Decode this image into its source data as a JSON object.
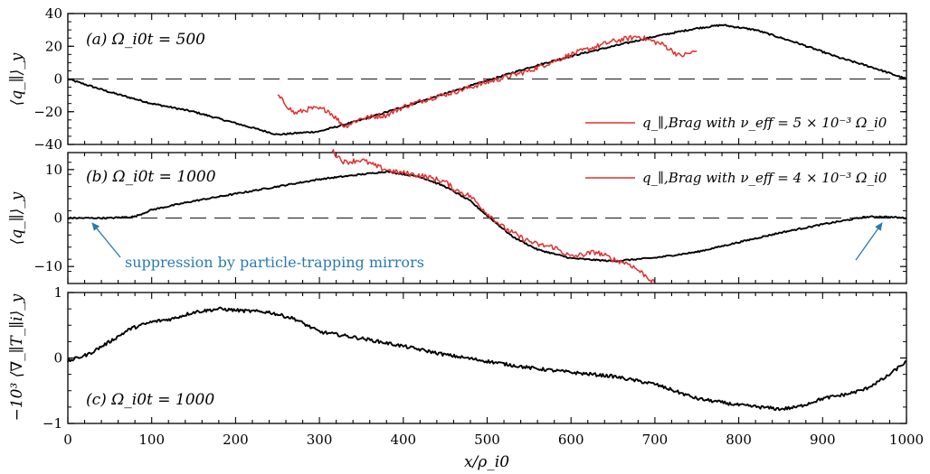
{
  "colors": {
    "black": "#000000",
    "red": "#e03030",
    "annotation": "#2a7ab0"
  },
  "xaxis": {
    "label": "x/ρ_i0",
    "ticks": [
      "0",
      "100",
      "200",
      "300",
      "400",
      "500",
      "600",
      "700",
      "800",
      "900",
      "1000"
    ]
  },
  "chart_data": [
    {
      "type": "line",
      "panel": "a",
      "panel_label": "(a) Ω_i0t = 500",
      "ylabel": "⟨q_∥⟩_y",
      "ylim": [
        -40,
        40
      ],
      "yticks": [
        "40",
        "20",
        "0",
        "−20",
        "−40"
      ],
      "ytick_values": [
        40,
        20,
        0,
        -20,
        -40
      ],
      "reference_line": 0,
      "xlim": [
        0,
        1000
      ],
      "series": [
        {
          "color": "#000000",
          "noise": 0.5,
          "x": [
            0,
            50,
            100,
            150,
            200,
            250,
            300,
            350,
            400,
            450,
            500,
            550,
            600,
            650,
            700,
            750,
            780,
            820,
            870,
            920,
            960,
            1000
          ],
          "y": [
            0,
            -8,
            -15,
            -20,
            -27,
            -34,
            -32,
            -25,
            -17,
            -9,
            -1,
            7,
            14,
            20,
            26,
            31,
            33,
            30,
            22,
            13,
            7,
            0
          ]
        },
        {
          "name": "q_∥,Brag with ν_eff = 5 × 10⁻³ Ω_i0",
          "color": "#e03030",
          "noise": 1.6,
          "x": [
            250,
            270,
            290,
            310,
            330,
            350,
            380,
            400,
            430,
            460,
            500,
            550,
            600,
            650,
            680,
            710,
            730,
            750
          ],
          "y": [
            -10,
            -21,
            -18,
            -19,
            -29,
            -24,
            -22,
            -17,
            -12,
            -8,
            -2,
            5,
            15,
            23,
            26,
            21,
            14,
            17
          ]
        }
      ],
      "legend": {
        "label": "q_∥,Brag with ν_eff = 5 × 10⁻³ Ω_i0",
        "position": "bottom-right"
      }
    },
    {
      "type": "line",
      "panel": "b",
      "panel_label": "(b) Ω_i0t = 1000",
      "ylabel": "⟨q_∥⟩_y",
      "ylim": [
        -13.5,
        13.5
      ],
      "yticks": [
        "10",
        "0",
        "−10"
      ],
      "ytick_values": [
        10,
        0,
        -10
      ],
      "reference_line": 0,
      "xlim": [
        0,
        1000
      ],
      "series": [
        {
          "color": "#000000",
          "noise": 0.15,
          "x": [
            0,
            50,
            80,
            100,
            150,
            200,
            250,
            300,
            350,
            380,
            420,
            450,
            480,
            500,
            530,
            560,
            600,
            650,
            700,
            750,
            800,
            850,
            900,
            950,
            970,
            1000
          ],
          "y": [
            0,
            0,
            0.3,
            1.7,
            3.5,
            5,
            6.5,
            8,
            9,
            9.6,
            8.5,
            6.5,
            3.5,
            0.5,
            -3.8,
            -6.5,
            -8.3,
            -8.9,
            -8.2,
            -7,
            -5,
            -3,
            -1.3,
            0.2,
            0.3,
            0
          ]
        },
        {
          "name": "q_∥,Brag with ν_eff = 4 × 10⁻³ Ω_i0",
          "color": "#e03030",
          "noise": 0.55,
          "x": [
            315,
            330,
            350,
            370,
            390,
            420,
            450,
            460,
            480,
            500,
            520,
            540,
            560,
            580,
            600,
            630,
            650,
            670,
            690,
            700
          ],
          "y": [
            13.8,
            11.5,
            12,
            10.5,
            9.5,
            8.8,
            7.5,
            6,
            4.5,
            1,
            -2,
            -4,
            -5.5,
            -6,
            -8,
            -7,
            -8.5,
            -9.5,
            -12,
            -13.5
          ]
        }
      ],
      "legend": {
        "label": "q_∥,Brag with ν_eff = 4 × 10⁻³ Ω_i0",
        "position": "top-right"
      },
      "annotation": {
        "text": "suppression by particle-trapping mirrors",
        "arrow_targets_x": [
          25,
          975
        ]
      }
    },
    {
      "type": "line",
      "panel": "c",
      "panel_label": "(c) Ω_i0t = 1000",
      "ylabel": "−10³ ⟨∇_∥T_∥i⟩_y",
      "ylim": [
        -1,
        1
      ],
      "yticks": [
        "1",
        "0",
        "−1"
      ],
      "ytick_values": [
        1,
        0,
        -1
      ],
      "xlim": [
        0,
        1000
      ],
      "series": [
        {
          "color": "#000000",
          "noise": 0.025,
          "x": [
            0,
            25,
            50,
            75,
            100,
            125,
            150,
            180,
            210,
            240,
            270,
            300,
            350,
            400,
            450,
            500,
            550,
            600,
            650,
            700,
            750,
            800,
            850,
            870,
            900,
            930,
            950,
            975,
            1000
          ],
          "y": [
            -0.05,
            0.06,
            0.25,
            0.45,
            0.55,
            0.6,
            0.7,
            0.75,
            0.72,
            0.7,
            0.6,
            0.4,
            0.3,
            0.18,
            0.05,
            -0.05,
            -0.15,
            -0.22,
            -0.28,
            -0.4,
            -0.62,
            -0.72,
            -0.78,
            -0.75,
            -0.62,
            -0.55,
            -0.48,
            -0.3,
            -0.05
          ]
        }
      ]
    }
  ]
}
